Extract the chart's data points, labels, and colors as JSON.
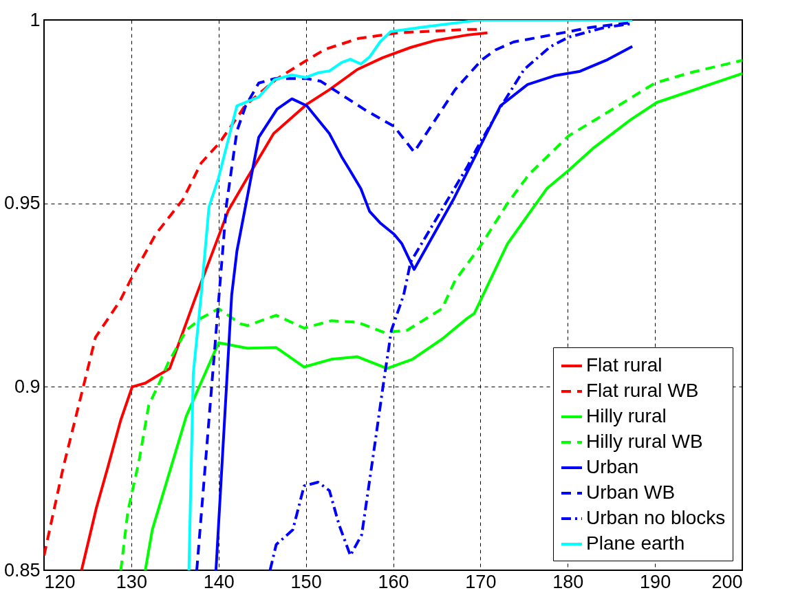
{
  "chart_data": {
    "type": "line",
    "xlim": [
      120,
      200
    ],
    "ylim": [
      0.85,
      1
    ],
    "xticks": [
      120,
      130,
      140,
      150,
      160,
      170,
      180,
      190,
      200
    ],
    "yticks": [
      0.85,
      0.9,
      0.95,
      1
    ],
    "grid": true,
    "legend": "bottom right",
    "marker": "none",
    "series": [
      {
        "name": "Flat rural",
        "color": "#ff0000",
        "line_style": "solid",
        "x": [
          124.3,
          126.0,
          127.3,
          128.8,
          130.1,
          131.6,
          133.0,
          134.4,
          137.3,
          141.1,
          143.3,
          146.3,
          150.1,
          152.7,
          155.9,
          158.8,
          162.0,
          164.8,
          168.5,
          170.8
        ],
        "values": [
          0.85,
          0.867,
          0.878,
          0.891,
          0.9,
          0.901,
          0.903,
          0.905,
          0.924,
          0.948,
          0.957,
          0.969,
          0.977,
          0.981,
          0.9865,
          0.9897,
          0.9925,
          0.9944,
          0.9959,
          0.9965
        ]
      },
      {
        "name": "Flat rural WB",
        "color": "#ff0000",
        "line_style": "dashed",
        "x": [
          120.0,
          122.2,
          124.5,
          125.9,
          128.7,
          130.1,
          132.8,
          135.9,
          138.0,
          140.1,
          142.5,
          143.0,
          146.7,
          150.1,
          152.2,
          156.1,
          160.6,
          168.5,
          169.8
        ],
        "values": [
          0.854,
          0.878,
          0.9,
          0.9135,
          0.9234,
          0.93,
          0.9416,
          0.951,
          0.961,
          0.9665,
          0.9747,
          0.9766,
          0.984,
          0.989,
          0.992,
          0.995,
          0.9965,
          0.9974,
          0.9974
        ]
      },
      {
        "name": "Hilly rural",
        "color": "#00ff00",
        "line_style": "solid",
        "x": [
          131.6,
          132.4,
          136.3,
          140.0,
          143.3,
          146.6,
          149.8,
          152.9,
          155.9,
          159.3,
          162.2,
          165.6,
          168.5,
          169.3,
          173.1,
          177.6,
          180.1,
          182.9,
          187.2,
          190.2,
          200.0
        ],
        "values": [
          0.85,
          0.861,
          0.892,
          0.912,
          0.9105,
          0.9107,
          0.9054,
          0.9075,
          0.9082,
          0.905,
          0.9075,
          0.913,
          0.9187,
          0.92,
          0.939,
          0.954,
          0.959,
          0.965,
          0.9728,
          0.9775,
          0.9854
        ]
      },
      {
        "name": "Hilly rural WB",
        "color": "#00ff00",
        "line_style": "dashed",
        "x": [
          128.8,
          129.6,
          130.9,
          132.0,
          133.2,
          134.2,
          136.3,
          138.0,
          140.0,
          142.5,
          143.3,
          146.6,
          149.8,
          152.9,
          155.9,
          159.0,
          161.6,
          165.6,
          167.1,
          169.9,
          173.1,
          175.6,
          180.1,
          184.0,
          190.0,
          194.0,
          200.0
        ],
        "values": [
          0.85,
          0.866,
          0.88,
          0.895,
          0.901,
          0.9064,
          0.9154,
          0.9187,
          0.9213,
          0.9172,
          0.9167,
          0.9195,
          0.916,
          0.918,
          0.9176,
          0.9148,
          0.9154,
          0.9213,
          0.929,
          0.938,
          0.95,
          0.958,
          0.9684,
          0.974,
          0.9828,
          0.9856,
          0.989
        ]
      },
      {
        "name": "Urban",
        "color": "#0000ff",
        "line_style": "solid",
        "x": [
          139.7,
          141.5,
          142.1,
          144.6,
          146.7,
          148.4,
          150.1,
          152.7,
          154.1,
          155.1,
          156.3,
          157.3,
          158.5,
          160.1,
          161.0,
          162.4,
          167.0,
          172.3,
          175.4,
          178.5,
          181.4,
          184.4,
          187.4
        ],
        "values": [
          0.85,
          0.925,
          0.937,
          0.968,
          0.9757,
          0.9785,
          0.9766,
          0.969,
          0.9627,
          0.9588,
          0.954,
          0.9478,
          0.9447,
          0.9416,
          0.939,
          0.932,
          0.9515,
          0.9766,
          0.9824,
          0.9848,
          0.986,
          0.989,
          0.9928
        ]
      },
      {
        "name": "Urban WB",
        "color": "#0000ff",
        "line_style": "dashed",
        "x": [
          137.5,
          140.0,
          140.9,
          142.1,
          143.1,
          144.6,
          146.4,
          150.1,
          151.7,
          154.1,
          156.9,
          160.1,
          162.4,
          167.1,
          170.1,
          171.7,
          173.8,
          180.1,
          182.7,
          187.4
        ],
        "values": [
          0.85,
          0.9234,
          0.9496,
          0.9697,
          0.9766,
          0.9828,
          0.984,
          0.984,
          0.9833,
          0.9796,
          0.9753,
          0.971,
          0.964,
          0.981,
          0.989,
          0.9918,
          0.994,
          0.9968,
          0.998,
          0.9993
        ]
      },
      {
        "name": "Urban no blocks",
        "color": "#0000ff",
        "line_style": "dashdot",
        "x": [
          145.9,
          146.6,
          148.5,
          149.8,
          151.4,
          152.7,
          153.8,
          155.1,
          156.4,
          157.7,
          159.0,
          159.8,
          161.2,
          162.0,
          168.5,
          169.5,
          172.4,
          175.0,
          178.0,
          180.1,
          184.3,
          187.4
        ],
        "values": [
          0.85,
          0.857,
          0.861,
          0.873,
          0.874,
          0.8717,
          0.8624,
          0.854,
          0.8597,
          0.881,
          0.9028,
          0.9154,
          0.925,
          0.934,
          0.96,
          0.9646,
          0.9766,
          0.9865,
          0.9927,
          0.9953,
          0.998,
          0.999
        ]
      },
      {
        "name": "Plane earth",
        "color": "#00ffff",
        "line_style": "solid",
        "x": [
          136.6,
          137.1,
          138.0,
          138.9,
          140.0,
          142.1,
          144.6,
          146.4,
          148.4,
          150.0,
          151.4,
          152.7,
          154.1,
          155.1,
          156.3,
          157.3,
          158.5,
          159.7,
          163.2,
          168.5,
          170.0,
          187.4
        ],
        "values": [
          0.85,
          0.9036,
          0.925,
          0.949,
          0.957,
          0.9766,
          0.979,
          0.9837,
          0.985,
          0.9843,
          0.9856,
          0.9861,
          0.9884,
          0.9893,
          0.988,
          0.9899,
          0.994,
          0.9968,
          0.998,
          0.9996,
          1.0,
          1.0
        ]
      }
    ]
  }
}
